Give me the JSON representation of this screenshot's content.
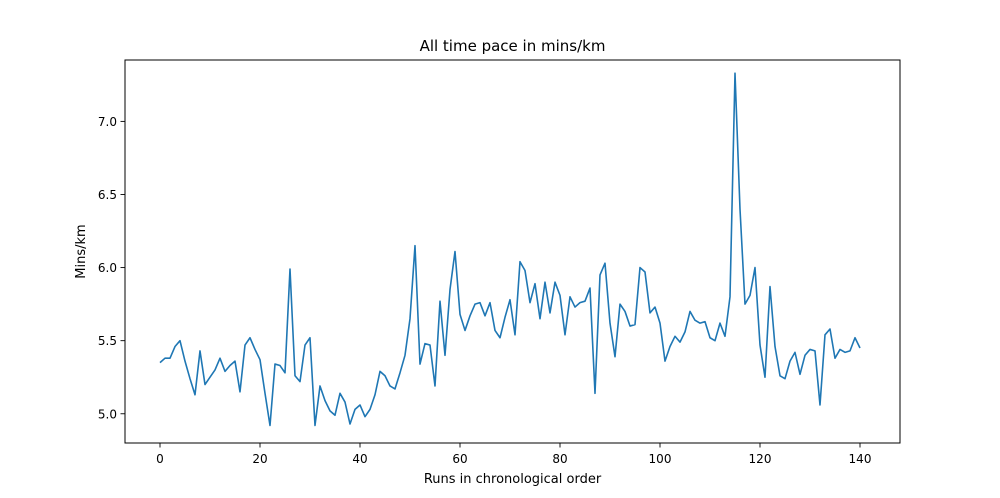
{
  "chart_data": {
    "type": "line",
    "title": "All time pace in mins/km",
    "xlabel": "Runs in chronological order",
    "ylabel": "Mins/km",
    "xlim": [
      -7,
      148
    ],
    "ylim": [
      4.8,
      7.42
    ],
    "xticks": [
      0,
      20,
      40,
      60,
      80,
      100,
      120,
      140
    ],
    "xtick_labels": [
      "0",
      "20",
      "40",
      "60",
      "80",
      "100",
      "120",
      "140"
    ],
    "yticks": [
      5.0,
      5.5,
      6.0,
      6.5,
      7.0
    ],
    "ytick_labels": [
      "5.0",
      "5.5",
      "6.0",
      "6.5",
      "7.0"
    ],
    "grid": false,
    "line_color": "#1f77b4",
    "series": [
      {
        "values": [
          5.35,
          5.38,
          5.38,
          5.46,
          5.5,
          5.36,
          5.24,
          5.13,
          5.43,
          5.2,
          5.25,
          5.3,
          5.38,
          5.29,
          5.33,
          5.36,
          5.15,
          5.47,
          5.52,
          5.44,
          5.37,
          5.14,
          4.92,
          5.34,
          5.33,
          5.28,
          5.99,
          5.26,
          5.22,
          5.47,
          5.52,
          4.92,
          5.19,
          5.09,
          5.02,
          4.99,
          5.14,
          5.08,
          4.93,
          5.03,
          5.06,
          4.98,
          5.03,
          5.13,
          5.29,
          5.26,
          5.19,
          5.17,
          5.28,
          5.4,
          5.65,
          6.15,
          5.34,
          5.48,
          5.47,
          5.19,
          5.77,
          5.4,
          5.85,
          6.11,
          5.68,
          5.57,
          5.67,
          5.75,
          5.76,
          5.67,
          5.76,
          5.57,
          5.52,
          5.66,
          5.78,
          5.54,
          6.04,
          5.98,
          5.76,
          5.89,
          5.65,
          5.9,
          5.69,
          5.9,
          5.81,
          5.54,
          5.8,
          5.73,
          5.76,
          5.77,
          5.86,
          5.14,
          5.95,
          6.03,
          5.62,
          5.39,
          5.75,
          5.7,
          5.6,
          5.61,
          6.0,
          5.97,
          5.69,
          5.73,
          5.62,
          5.36,
          5.46,
          5.53,
          5.49,
          5.56,
          5.7,
          5.64,
          5.62,
          5.63,
          5.52,
          5.5,
          5.62,
          5.53,
          5.8,
          7.33,
          6.4,
          5.75,
          5.81,
          6.0,
          5.47,
          5.25,
          5.87,
          5.46,
          5.26,
          5.24,
          5.36,
          5.42,
          5.27,
          5.4,
          5.44,
          5.43,
          5.06,
          5.54,
          5.58,
          5.38,
          5.44,
          5.42,
          5.43,
          5.52,
          5.45
        ]
      }
    ]
  }
}
